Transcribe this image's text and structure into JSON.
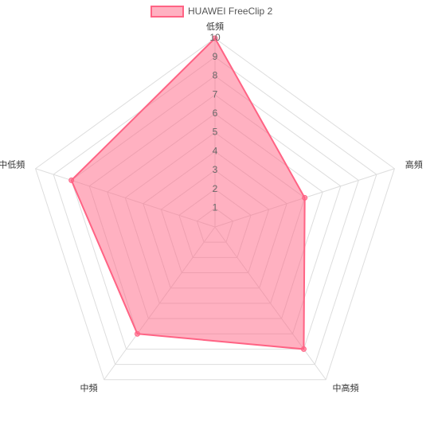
{
  "chart_data": {
    "type": "radar",
    "categories": [
      "低頻",
      "高頻",
      "中高頻",
      "中頻",
      "中低頻"
    ],
    "series": [
      {
        "name": "HUAWEI FreeClip 2",
        "color": "#ff6384",
        "values": [
          10,
          5,
          8,
          7,
          8
        ]
      }
    ],
    "ylim": [
      0,
      10
    ],
    "yticks": [
      1,
      2,
      3,
      4,
      5,
      6,
      7,
      8,
      9,
      10
    ],
    "grid": true,
    "legend": "top"
  }
}
